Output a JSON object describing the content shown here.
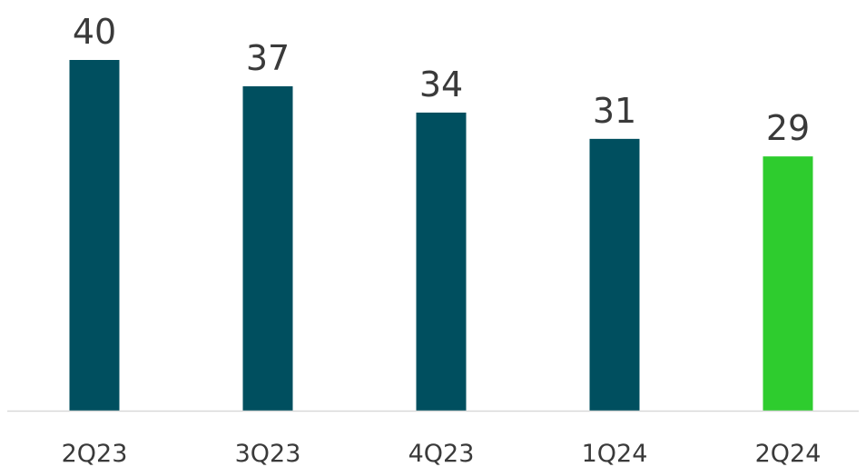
{
  "chart_data": {
    "type": "bar",
    "categories": [
      "2Q23",
      "3Q23",
      "4Q23",
      "1Q24",
      "2Q24"
    ],
    "values": [
      40,
      37,
      34,
      31,
      29
    ],
    "title": "",
    "xlabel": "",
    "ylabel": "",
    "ylim": [
      0,
      40
    ],
    "grid": false,
    "legend": "none",
    "colors": {
      "default": "#004f5f",
      "highlight": "#2ecc2e",
      "axis": "#d9d9d9"
    },
    "highlight_index": 4
  }
}
